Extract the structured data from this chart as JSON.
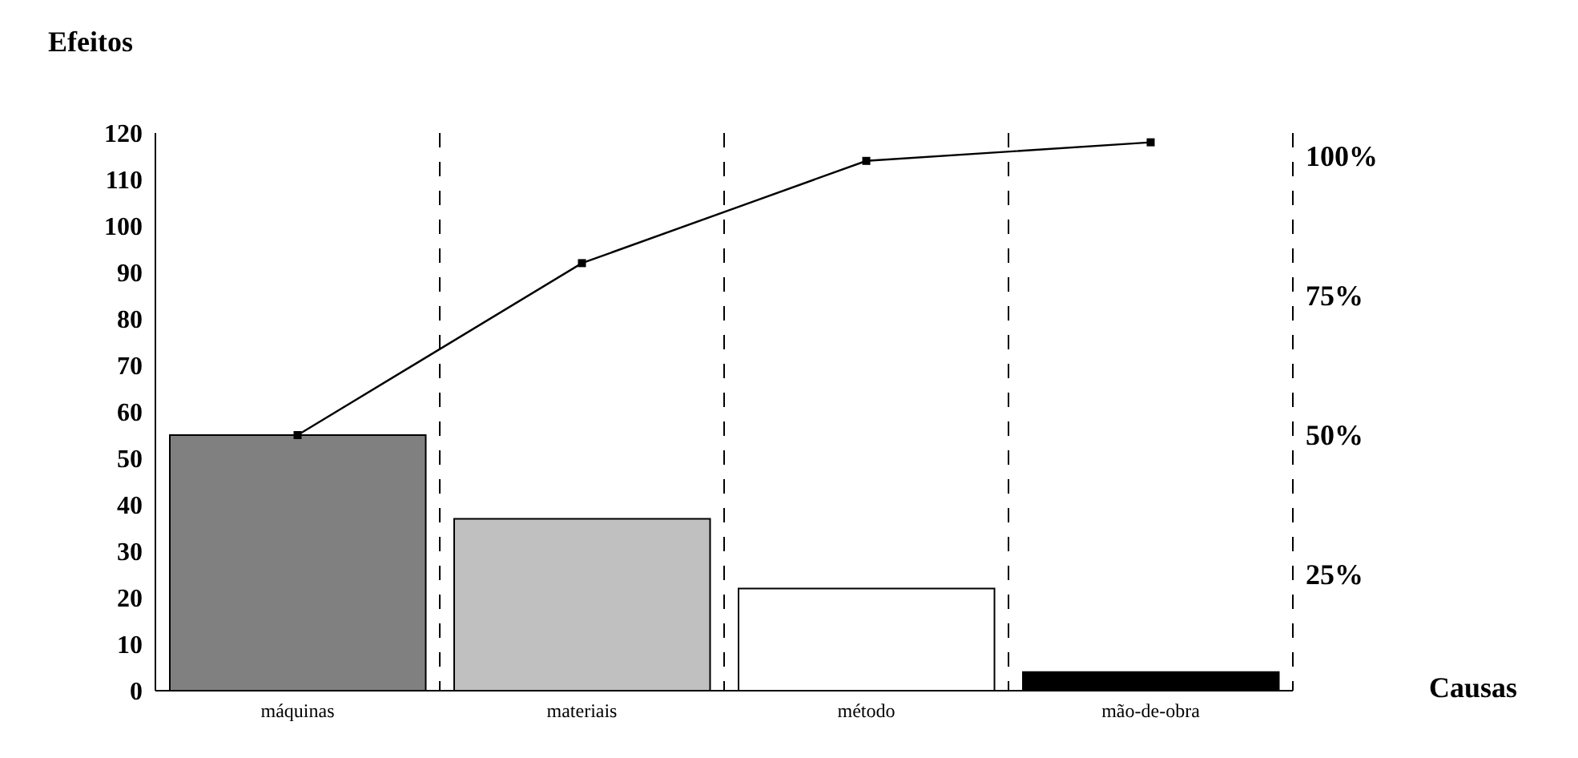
{
  "chart_data": {
    "type": "bar",
    "xlabel": "Causas",
    "ylabel": "Efeitos",
    "categories": [
      "máquinas",
      "materiais",
      "método",
      "mão-de-obra"
    ],
    "series": [
      {
        "values": [
          55,
          37,
          22,
          4
        ],
        "colors": [
          "#808080",
          "#c0c0c0",
          "#ffffff",
          "#000000"
        ]
      },
      {
        "type": "line",
        "values": [
          55,
          92,
          114,
          118
        ],
        "color": "#000000"
      }
    ],
    "ylim": [
      0,
      120
    ],
    "yticks": [
      0,
      10,
      20,
      30,
      40,
      50,
      60,
      70,
      80,
      90,
      100,
      110,
      120
    ],
    "y2lim": [
      4,
      104
    ],
    "y2ticks": [
      {
        "value": 25,
        "label": "25%"
      },
      {
        "value": 50,
        "label": "50%"
      },
      {
        "value": 75,
        "label": "75%"
      },
      {
        "value": 100,
        "label": "100%"
      }
    ],
    "grid": "x",
    "marker": "square",
    "legend": false
  }
}
